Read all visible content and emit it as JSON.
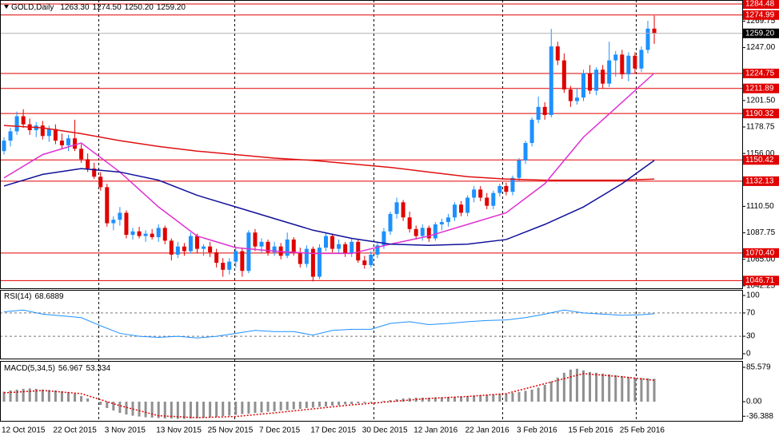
{
  "chart_data": [
    {
      "type": "candlestick",
      "title": "GOLD,Daily",
      "header_values": [
        "1263.30",
        "1274.50",
        "1250.20",
        "1259.20"
      ],
      "up_color": "#1e90ff",
      "down_color": "#e00000",
      "categories": [
        "12 Oct 2015",
        null,
        null,
        null,
        null,
        null,
        null,
        null,
        "22 Oct 2015",
        null,
        null,
        null,
        null,
        null,
        null,
        null,
        "3 Nov 2015",
        null,
        null,
        null,
        null,
        null,
        null,
        null,
        "13 Nov 2015",
        null,
        null,
        null,
        null,
        null,
        null,
        null,
        "25 Nov 2015",
        null,
        null,
        null,
        null,
        null,
        null,
        null,
        "7 Dec 2015",
        null,
        null,
        null,
        null,
        null,
        null,
        null,
        "17 Dec 2015",
        null,
        null,
        null,
        null,
        null,
        null,
        null,
        "30 Dec 2015",
        null,
        null,
        null,
        null,
        null,
        null,
        null,
        "12 Jan 2016",
        null,
        null,
        null,
        null,
        null,
        null,
        null,
        "22 Jan 2016",
        null,
        null,
        null,
        null,
        null,
        null,
        null,
        "3 Feb 2016",
        null,
        null,
        null,
        null,
        null,
        null,
        null,
        "15 Feb 2016",
        null,
        null,
        null,
        null,
        null,
        null,
        null,
        "25 Feb 2016",
        null,
        null,
        null,
        null,
        null
      ],
      "candles": [
        [
          1158,
          1170,
          1155,
          1167
        ],
        [
          1167,
          1178,
          1162,
          1175
        ],
        [
          1175,
          1192,
          1172,
          1188
        ],
        [
          1188,
          1194,
          1178,
          1181
        ],
        [
          1181,
          1186,
          1172,
          1176
        ],
        [
          1176,
          1183,
          1170,
          1180
        ],
        [
          1180,
          1184,
          1168,
          1171
        ],
        [
          1171,
          1180,
          1166,
          1177
        ],
        [
          1177,
          1181,
          1164,
          1167
        ],
        [
          1167,
          1173,
          1160,
          1163
        ],
        [
          1163,
          1172,
          1158,
          1169
        ],
        [
          1169,
          1185,
          1158,
          1160
        ],
        [
          1160,
          1164,
          1148,
          1151
        ],
        [
          1151,
          1156,
          1140,
          1143
        ],
        [
          1143,
          1148,
          1134,
          1136
        ],
        [
          1136,
          1140,
          1124,
          1127
        ],
        [
          1127,
          1130,
          1093,
          1096
        ],
        [
          1096,
          1102,
          1090,
          1099
        ],
        [
          1099,
          1110,
          1094,
          1105
        ],
        [
          1105,
          1107,
          1083,
          1086
        ],
        [
          1086,
          1092,
          1082,
          1089
        ],
        [
          1089,
          1093,
          1083,
          1085
        ],
        [
          1085,
          1090,
          1080,
          1087
        ],
        [
          1087,
          1091,
          1082,
          1084
        ],
        [
          1084,
          1095,
          1080,
          1092
        ],
        [
          1092,
          1094,
          1078,
          1081
        ],
        [
          1081,
          1083,
          1064,
          1069
        ],
        [
          1069,
          1080,
          1066,
          1076
        ],
        [
          1076,
          1079,
          1068,
          1072
        ],
        [
          1072,
          1088,
          1070,
          1085
        ],
        [
          1085,
          1087,
          1070,
          1074
        ],
        [
          1074,
          1078,
          1068,
          1076
        ],
        [
          1076,
          1080,
          1067,
          1071
        ],
        [
          1071,
          1074,
          1058,
          1062
        ],
        [
          1062,
          1066,
          1050,
          1056
        ],
        [
          1056,
          1066,
          1052,
          1063
        ],
        [
          1063,
          1076,
          1058,
          1072
        ],
        [
          1072,
          1075,
          1050,
          1055
        ],
        [
          1055,
          1090,
          1053,
          1088
        ],
        [
          1088,
          1091,
          1072,
          1076
        ],
        [
          1076,
          1083,
          1070,
          1080
        ],
        [
          1080,
          1082,
          1068,
          1071
        ],
        [
          1071,
          1080,
          1068,
          1076
        ],
        [
          1076,
          1079,
          1065,
          1068
        ],
        [
          1068,
          1088,
          1066,
          1082
        ],
        [
          1082,
          1084,
          1068,
          1071
        ],
        [
          1071,
          1075,
          1058,
          1061
        ],
        [
          1061,
          1077,
          1058,
          1074
        ],
        [
          1074,
          1076,
          1046,
          1050
        ],
        [
          1050,
          1078,
          1048,
          1075
        ],
        [
          1075,
          1088,
          1072,
          1085
        ],
        [
          1085,
          1087,
          1071,
          1074
        ],
        [
          1074,
          1082,
          1070,
          1078
        ],
        [
          1078,
          1080,
          1067,
          1070
        ],
        [
          1070,
          1083,
          1067,
          1080
        ],
        [
          1080,
          1082,
          1062,
          1064
        ],
        [
          1064,
          1068,
          1057,
          1060
        ],
        [
          1060,
          1072,
          1058,
          1069
        ],
        [
          1069,
          1080,
          1066,
          1077
        ],
        [
          1077,
          1092,
          1074,
          1089
        ],
        [
          1089,
          1106,
          1086,
          1104
        ],
        [
          1104,
          1118,
          1100,
          1114
        ],
        [
          1114,
          1116,
          1098,
          1101
        ],
        [
          1101,
          1106,
          1088,
          1091
        ],
        [
          1091,
          1094,
          1082,
          1085
        ],
        [
          1085,
          1095,
          1081,
          1092
        ],
        [
          1092,
          1094,
          1080,
          1083
        ],
        [
          1083,
          1097,
          1081,
          1095
        ],
        [
          1095,
          1100,
          1090,
          1097
        ],
        [
          1097,
          1104,
          1093,
          1101
        ],
        [
          1101,
          1114,
          1098,
          1112
        ],
        [
          1112,
          1115,
          1102,
          1105
        ],
        [
          1105,
          1120,
          1102,
          1118
        ],
        [
          1118,
          1128,
          1114,
          1125
        ],
        [
          1125,
          1128,
          1115,
          1118
        ],
        [
          1118,
          1122,
          1108,
          1111
        ],
        [
          1111,
          1124,
          1108,
          1122
        ],
        [
          1122,
          1130,
          1119,
          1128
        ],
        [
          1128,
          1131,
          1120,
          1123
        ],
        [
          1123,
          1137,
          1120,
          1135
        ],
        [
          1135,
          1152,
          1132,
          1150
        ],
        [
          1150,
          1167,
          1147,
          1165
        ],
        [
          1165,
          1187,
          1162,
          1185
        ],
        [
          1185,
          1205,
          1182,
          1196
        ],
        [
          1196,
          1200,
          1185,
          1189
        ],
        [
          1189,
          1263,
          1187,
          1248
        ],
        [
          1248,
          1252,
          1232,
          1236
        ],
        [
          1236,
          1242,
          1208,
          1211
        ],
        [
          1211,
          1214,
          1196,
          1201
        ],
        [
          1201,
          1212,
          1198,
          1204
        ],
        [
          1204,
          1228,
          1201,
          1225
        ],
        [
          1225,
          1232,
          1207,
          1210
        ],
        [
          1210,
          1230,
          1206,
          1228
        ],
        [
          1228,
          1232,
          1212,
          1216
        ],
        [
          1216,
          1252,
          1213,
          1236
        ],
        [
          1236,
          1244,
          1222,
          1241
        ],
        [
          1241,
          1245,
          1220,
          1224
        ],
        [
          1224,
          1243,
          1218,
          1240
        ],
        [
          1240,
          1243,
          1225,
          1229
        ],
        [
          1229,
          1248,
          1226,
          1245
        ],
        [
          1245,
          1270,
          1242,
          1263.3
        ],
        [
          1263.3,
          1274.5,
          1250.2,
          1259.2
        ]
      ],
      "series": [
        {
          "color": "#e01010",
          "x": [
            0,
            6,
            12,
            18,
            24,
            30,
            36,
            42,
            48,
            54,
            60,
            66,
            72,
            78,
            84,
            90,
            96,
            101
          ],
          "values": [
            1180,
            1178,
            1173,
            1167,
            1162,
            1158,
            1155,
            1152,
            1150,
            1147,
            1144,
            1140,
            1136,
            1134,
            1133,
            1133,
            1133,
            1134
          ]
        },
        {
          "color": "#e030d0",
          "x": [
            0,
            6,
            12,
            18,
            24,
            30,
            36,
            42,
            48,
            54,
            60,
            66,
            72,
            78,
            84,
            90,
            96,
            101
          ],
          "values": [
            1135,
            1155,
            1165,
            1140,
            1110,
            1085,
            1075,
            1072,
            1070,
            1070,
            1078,
            1085,
            1095,
            1105,
            1130,
            1170,
            1200,
            1225
          ]
        },
        {
          "color": "#10109a",
          "x": [
            0,
            6,
            12,
            18,
            24,
            30,
            36,
            42,
            48,
            54,
            60,
            66,
            72,
            78,
            84,
            90,
            96,
            101
          ],
          "values": [
            1128,
            1138,
            1143,
            1140,
            1133,
            1120,
            1110,
            1100,
            1090,
            1083,
            1078,
            1077,
            1078,
            1082,
            1095,
            1110,
            1130,
            1150
          ]
        }
      ],
      "levels": [
        1284.48,
        1274.99,
        1224.75,
        1211.89,
        1190.32,
        1150.42,
        1132.13,
        {
          "value": 1070.4,
          "label": "1070.40"
        },
        1046.71
      ],
      "level_color": "#e00000",
      "current_price": {
        "value": 1259.2,
        "label": "1259.20"
      },
      "ylim": [
        1039.4,
        1287.9
      ],
      "yticks": [
        1269.75,
        {
          "value": 1247,
          "label": "1247.00"
        },
        {
          "value": 1201.5,
          "label": "1201.50"
        },
        1178.75,
        {
          "value": 1156,
          "label": "1156.00"
        },
        {
          "value": 1110.5,
          "label": "1110.50"
        },
        1087.75,
        {
          "value": 1065,
          "label": "1065.00"
        },
        1042.25
      ]
    },
    {
      "type": "line",
      "title": "RSI(14)",
      "header_value": "68.6889",
      "color": "#1e90ff",
      "x": [
        0,
        3,
        6,
        9,
        12,
        15,
        18,
        21,
        24,
        27,
        30,
        33,
        36,
        39,
        42,
        45,
        48,
        51,
        54,
        57,
        60,
        63,
        66,
        69,
        72,
        75,
        78,
        81,
        84,
        87,
        90,
        93,
        96,
        99,
        101
      ],
      "values": [
        72,
        75,
        68,
        65,
        62,
        48,
        35,
        30,
        28,
        30,
        27,
        30,
        35,
        40,
        38,
        38,
        32,
        40,
        42,
        42,
        52,
        55,
        50,
        52,
        55,
        57,
        58,
        62,
        68,
        75,
        70,
        68,
        66,
        67,
        68.6889
      ],
      "levels": [
        70,
        30
      ],
      "ylim": [
        -9.6,
        109.6
      ],
      "yticks": [
        100,
        70,
        30,
        0
      ]
    },
    {
      "type": "bar",
      "title": "MACD(5,34,5)",
      "header_values": [
        "56.967",
        "53.334"
      ],
      "color": "#909090",
      "values": [
        25,
        28,
        30,
        32,
        33,
        32,
        30,
        29,
        28,
        26,
        24,
        20,
        14,
        8,
        0,
        -8,
        -16,
        -22,
        -28,
        -32,
        -35,
        -37,
        -39,
        -40,
        -41,
        -42,
        -42,
        -43,
        -43,
        -42,
        -41,
        -40,
        -39,
        -38,
        -36,
        -35,
        -33,
        -31,
        -30,
        -28,
        -27,
        -25,
        -24,
        -22,
        -21,
        -19,
        -18,
        -16,
        -15,
        -13,
        -12,
        -10,
        -9,
        -7,
        -6,
        -4,
        -3,
        -2,
        0,
        2,
        4,
        6,
        8,
        9,
        10,
        10,
        10,
        11,
        11,
        12,
        12,
        13,
        14,
        15,
        16,
        17,
        18,
        19,
        20,
        22,
        24,
        27,
        30,
        35,
        42,
        50,
        60,
        72,
        80,
        82,
        78,
        74,
        72,
        70,
        68,
        66,
        64,
        62,
        60,
        59,
        58,
        56.967
      ],
      "signal": {
        "color": "#e00000",
        "x": [
          0,
          6,
          12,
          18,
          24,
          30,
          36,
          42,
          48,
          54,
          60,
          66,
          72,
          78,
          84,
          90,
          96,
          101
        ],
        "values": [
          22,
          28,
          20,
          -10,
          -35,
          -40,
          -37,
          -28,
          -18,
          -8,
          0,
          8,
          13,
          20,
          45,
          70,
          62,
          53.334
        ]
      },
      "ylim": [
        -47.8,
        101.5
      ],
      "yticks": [
        85.579,
        {
          "value": 0,
          "label": "0.00"
        },
        -36.388
      ]
    }
  ]
}
